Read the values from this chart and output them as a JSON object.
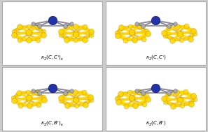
{
  "background_color": "#cccccc",
  "panel_bg": "#ffffff",
  "panels": [
    {
      "row": 0,
      "col": 0,
      "label": "$\\kappa_2(C,C')_\\kappa$"
    },
    {
      "row": 0,
      "col": 1,
      "label": "$\\kappa_2(C,C')$"
    },
    {
      "row": 1,
      "col": 0,
      "label": "$\\kappa_2(C,B')_\\kappa$"
    },
    {
      "row": 1,
      "col": 1,
      "label": "$\\kappa_2(C,B')$"
    }
  ],
  "yellow": "#FFD700",
  "yellow_dark": "#DAA000",
  "yellow_edge": "#B8860B",
  "blue": "#2233AA",
  "blue_dark": "#000066",
  "gray_bond": "#888899",
  "gray_atom": "#999999",
  "white_atom": "#e8e8e8",
  "label_fontsize": 5.0
}
